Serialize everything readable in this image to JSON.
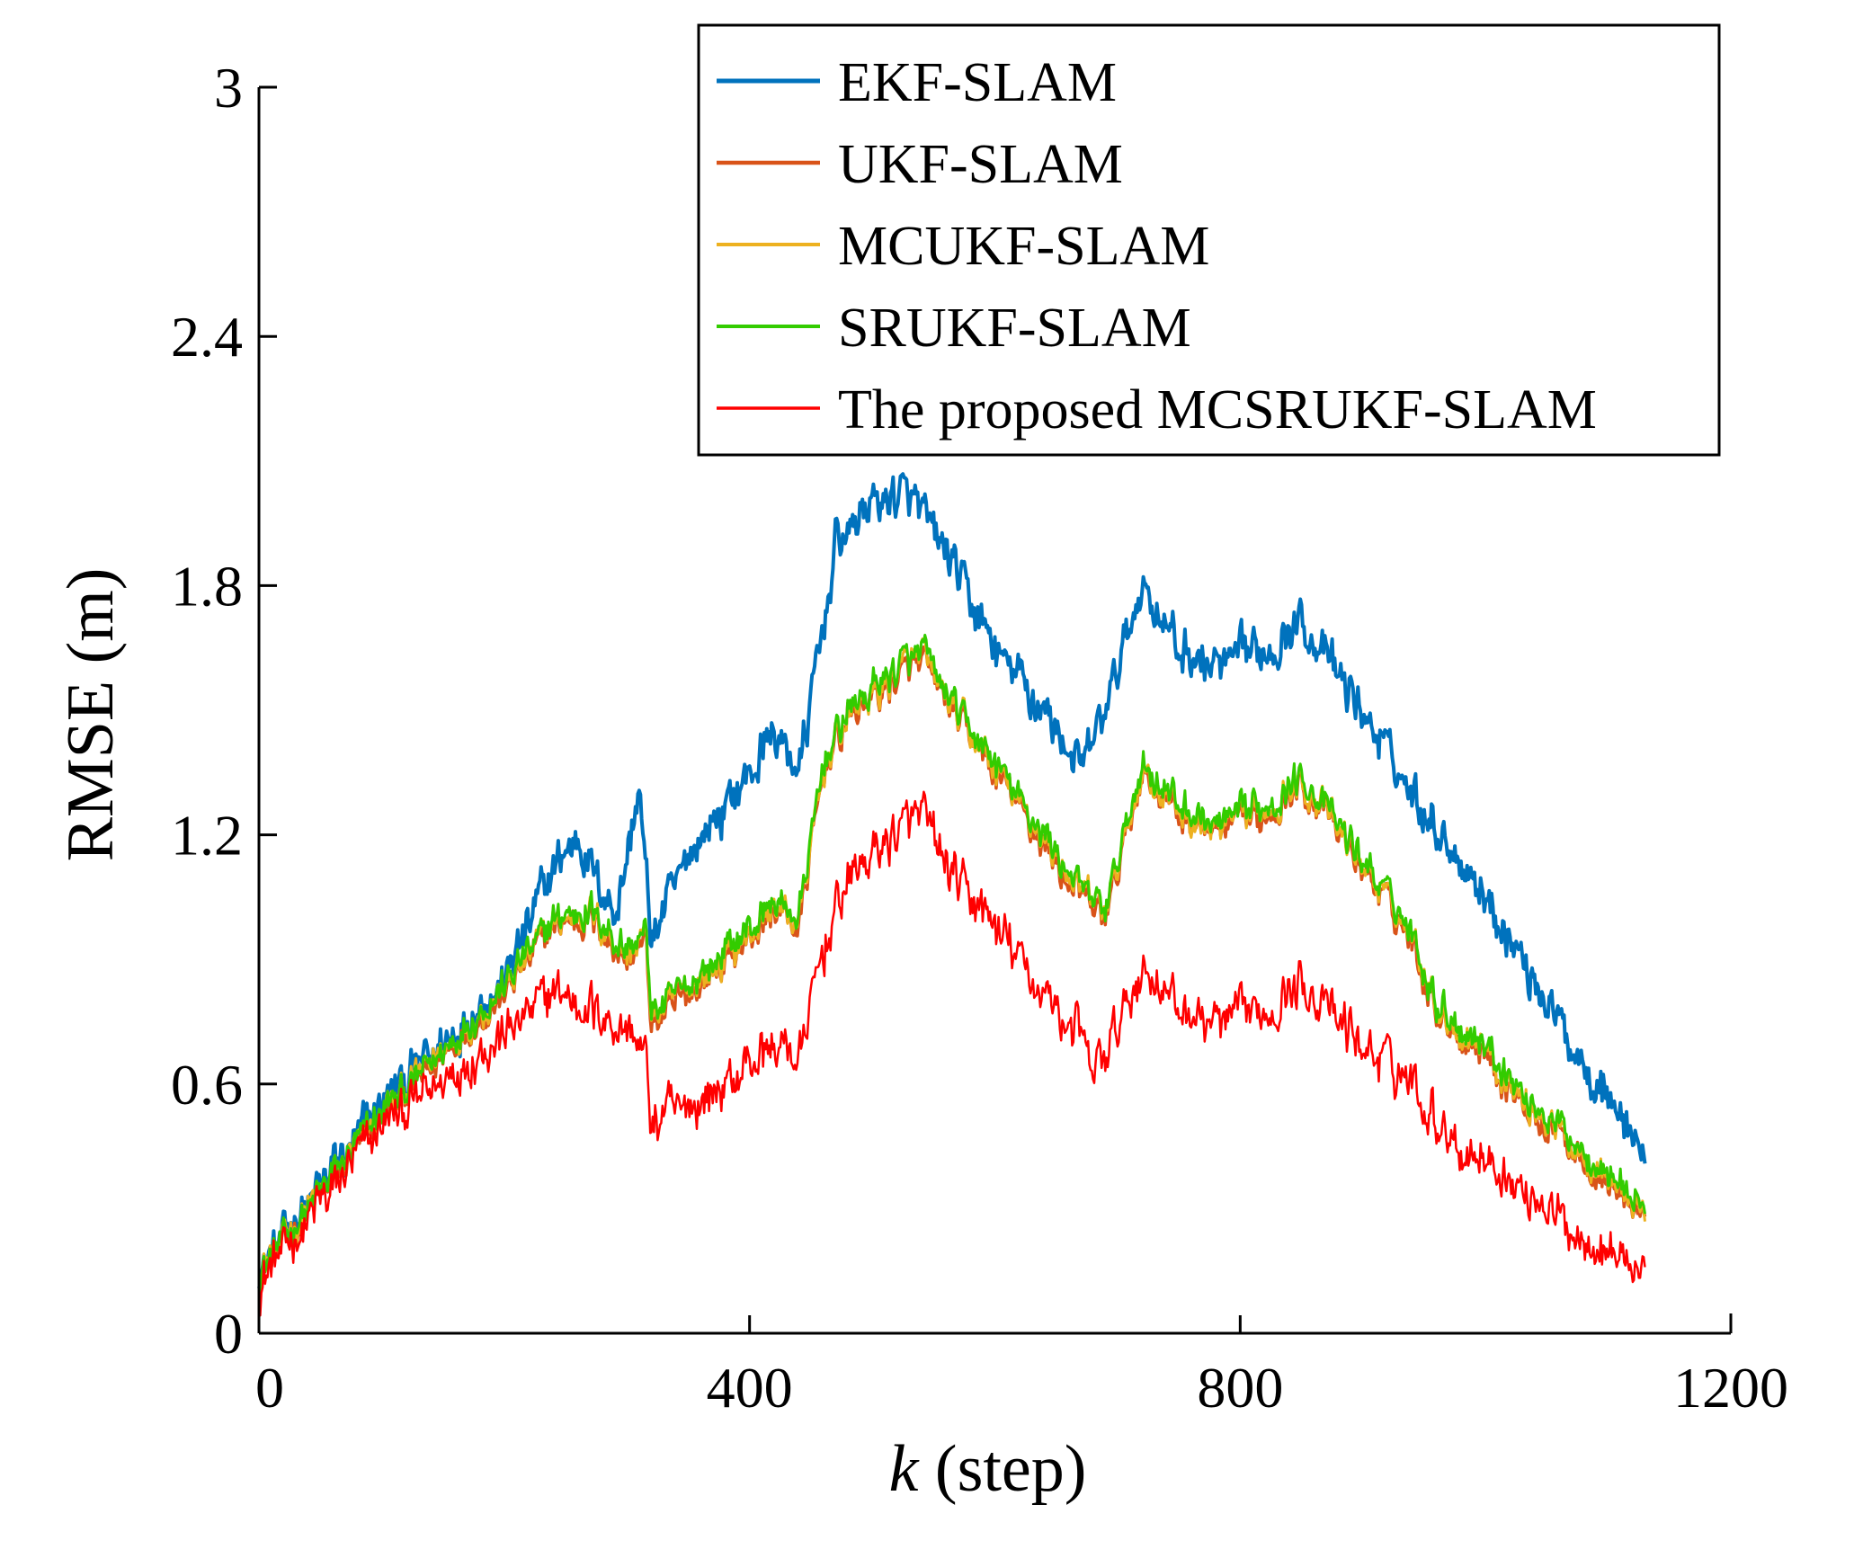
{
  "chart_data": {
    "type": "line",
    "title": "",
    "xlabel_italic": "k",
    "xlabel_rest": " (step)",
    "ylabel": "RMSE (m)",
    "xlim": [
      0,
      1200
    ],
    "ylim": [
      0,
      3
    ],
    "xticks": [
      0,
      400,
      800,
      1200
    ],
    "xtick_labels": [
      "0",
      "400",
      "800",
      "1200"
    ],
    "yticks": [
      0,
      0.6,
      1.2,
      1.8,
      2.4,
      3
    ],
    "ytick_labels": [
      "0",
      "0.6",
      "1.2",
      "1.8",
      "2.4",
      "3"
    ],
    "grid": false,
    "legend_position": "top-right",
    "x_end": 1130,
    "series": [
      {
        "name": "EKF-SLAM",
        "color": "#0072BD",
        "keypoints": [
          [
            0,
            0.15
          ],
          [
            100,
            0.55
          ],
          [
            200,
            0.85
          ],
          [
            240,
            1.12
          ],
          [
            260,
            1.2
          ],
          [
            290,
            1.0
          ],
          [
            310,
            1.3
          ],
          [
            320,
            0.95
          ],
          [
            350,
            1.15
          ],
          [
            400,
            1.35
          ],
          [
            420,
            1.45
          ],
          [
            440,
            1.35
          ],
          [
            460,
            1.7
          ],
          [
            470,
            1.9
          ],
          [
            500,
            2.0
          ],
          [
            530,
            2.02
          ],
          [
            560,
            1.88
          ],
          [
            600,
            1.65
          ],
          [
            640,
            1.5
          ],
          [
            670,
            1.35
          ],
          [
            690,
            1.5
          ],
          [
            720,
            1.8
          ],
          [
            750,
            1.65
          ],
          [
            780,
            1.6
          ],
          [
            820,
            1.65
          ],
          [
            850,
            1.72
          ],
          [
            870,
            1.62
          ],
          [
            900,
            1.5
          ],
          [
            940,
            1.3
          ],
          [
            980,
            1.15
          ],
          [
            1000,
            1.05
          ],
          [
            1020,
            0.95
          ],
          [
            1040,
            0.85
          ],
          [
            1070,
            0.7
          ],
          [
            1100,
            0.58
          ],
          [
            1130,
            0.42
          ]
        ],
        "noise": 0.05
      },
      {
        "name": "UKF-SLAM",
        "color": "#D95319",
        "keypoints": [
          [
            0,
            0.14
          ],
          [
            100,
            0.52
          ],
          [
            200,
            0.82
          ],
          [
            240,
            0.98
          ],
          [
            270,
            1.0
          ],
          [
            300,
            0.9
          ],
          [
            315,
            0.95
          ],
          [
            320,
            0.75
          ],
          [
            350,
            0.82
          ],
          [
            400,
            0.95
          ],
          [
            420,
            1.02
          ],
          [
            440,
            0.98
          ],
          [
            460,
            1.35
          ],
          [
            480,
            1.48
          ],
          [
            520,
            1.58
          ],
          [
            540,
            1.62
          ],
          [
            560,
            1.52
          ],
          [
            600,
            1.35
          ],
          [
            640,
            1.18
          ],
          [
            670,
            1.05
          ],
          [
            690,
            1.0
          ],
          [
            720,
            1.35
          ],
          [
            750,
            1.25
          ],
          [
            780,
            1.2
          ],
          [
            820,
            1.25
          ],
          [
            850,
            1.32
          ],
          [
            870,
            1.25
          ],
          [
            900,
            1.12
          ],
          [
            940,
            0.95
          ],
          [
            960,
            0.78
          ],
          [
            980,
            0.72
          ],
          [
            1000,
            0.68
          ],
          [
            1030,
            0.55
          ],
          [
            1060,
            0.48
          ],
          [
            1090,
            0.4
          ],
          [
            1130,
            0.28
          ]
        ],
        "noise": 0.04
      },
      {
        "name": "MCUKF-SLAM",
        "color": "#EDB120",
        "keypoints": [
          [
            0,
            0.15
          ],
          [
            100,
            0.53
          ],
          [
            200,
            0.83
          ],
          [
            240,
            0.99
          ],
          [
            270,
            1.01
          ],
          [
            300,
            0.91
          ],
          [
            315,
            0.96
          ],
          [
            320,
            0.76
          ],
          [
            350,
            0.83
          ],
          [
            400,
            0.96
          ],
          [
            420,
            1.03
          ],
          [
            440,
            0.99
          ],
          [
            460,
            1.36
          ],
          [
            480,
            1.49
          ],
          [
            520,
            1.59
          ],
          [
            540,
            1.63
          ],
          [
            560,
            1.53
          ],
          [
            600,
            1.36
          ],
          [
            640,
            1.19
          ],
          [
            670,
            1.06
          ],
          [
            690,
            1.01
          ],
          [
            720,
            1.36
          ],
          [
            750,
            1.26
          ],
          [
            780,
            1.21
          ],
          [
            820,
            1.26
          ],
          [
            850,
            1.33
          ],
          [
            870,
            1.26
          ],
          [
            900,
            1.13
          ],
          [
            940,
            0.96
          ],
          [
            960,
            0.79
          ],
          [
            980,
            0.73
          ],
          [
            1000,
            0.69
          ],
          [
            1030,
            0.56
          ],
          [
            1060,
            0.49
          ],
          [
            1090,
            0.41
          ],
          [
            1130,
            0.29
          ]
        ],
        "noise": 0.04
      },
      {
        "name": "SRUKF-SLAM",
        "color": "#33CC00",
        "keypoints": [
          [
            0,
            0.15
          ],
          [
            100,
            0.53
          ],
          [
            200,
            0.84
          ],
          [
            240,
            1.0
          ],
          [
            270,
            1.02
          ],
          [
            300,
            0.92
          ],
          [
            315,
            0.97
          ],
          [
            320,
            0.77
          ],
          [
            350,
            0.84
          ],
          [
            400,
            0.97
          ],
          [
            420,
            1.04
          ],
          [
            440,
            1.0
          ],
          [
            460,
            1.37
          ],
          [
            480,
            1.5
          ],
          [
            520,
            1.6
          ],
          [
            540,
            1.64
          ],
          [
            560,
            1.54
          ],
          [
            600,
            1.37
          ],
          [
            640,
            1.2
          ],
          [
            670,
            1.07
          ],
          [
            690,
            1.02
          ],
          [
            720,
            1.37
          ],
          [
            750,
            1.27
          ],
          [
            780,
            1.22
          ],
          [
            820,
            1.27
          ],
          [
            850,
            1.34
          ],
          [
            870,
            1.27
          ],
          [
            900,
            1.14
          ],
          [
            940,
            0.97
          ],
          [
            960,
            0.8
          ],
          [
            980,
            0.74
          ],
          [
            1000,
            0.7
          ],
          [
            1030,
            0.57
          ],
          [
            1060,
            0.5
          ],
          [
            1090,
            0.42
          ],
          [
            1130,
            0.3
          ]
        ],
        "noise": 0.04
      },
      {
        "name": "The proposed MCSRUKF-SLAM",
        "color": "#FF0000",
        "keypoints": [
          [
            0,
            0.12
          ],
          [
            100,
            0.5
          ],
          [
            200,
            0.72
          ],
          [
            240,
            0.82
          ],
          [
            270,
            0.78
          ],
          [
            300,
            0.72
          ],
          [
            315,
            0.68
          ],
          [
            320,
            0.5
          ],
          [
            350,
            0.55
          ],
          [
            380,
            0.6
          ],
          [
            400,
            0.65
          ],
          [
            430,
            0.7
          ],
          [
            440,
            0.65
          ],
          [
            460,
            0.92
          ],
          [
            480,
            1.1
          ],
          [
            520,
            1.2
          ],
          [
            540,
            1.25
          ],
          [
            560,
            1.12
          ],
          [
            600,
            0.98
          ],
          [
            640,
            0.82
          ],
          [
            670,
            0.72
          ],
          [
            680,
            0.62
          ],
          [
            700,
            0.72
          ],
          [
            720,
            0.88
          ],
          [
            750,
            0.78
          ],
          [
            780,
            0.74
          ],
          [
            820,
            0.78
          ],
          [
            850,
            0.85
          ],
          [
            870,
            0.78
          ],
          [
            900,
            0.7
          ],
          [
            940,
            0.6
          ],
          [
            960,
            0.52
          ],
          [
            980,
            0.45
          ],
          [
            1000,
            0.42
          ],
          [
            1030,
            0.35
          ],
          [
            1060,
            0.28
          ],
          [
            1090,
            0.22
          ],
          [
            1130,
            0.16
          ]
        ],
        "noise": 0.055
      }
    ]
  }
}
